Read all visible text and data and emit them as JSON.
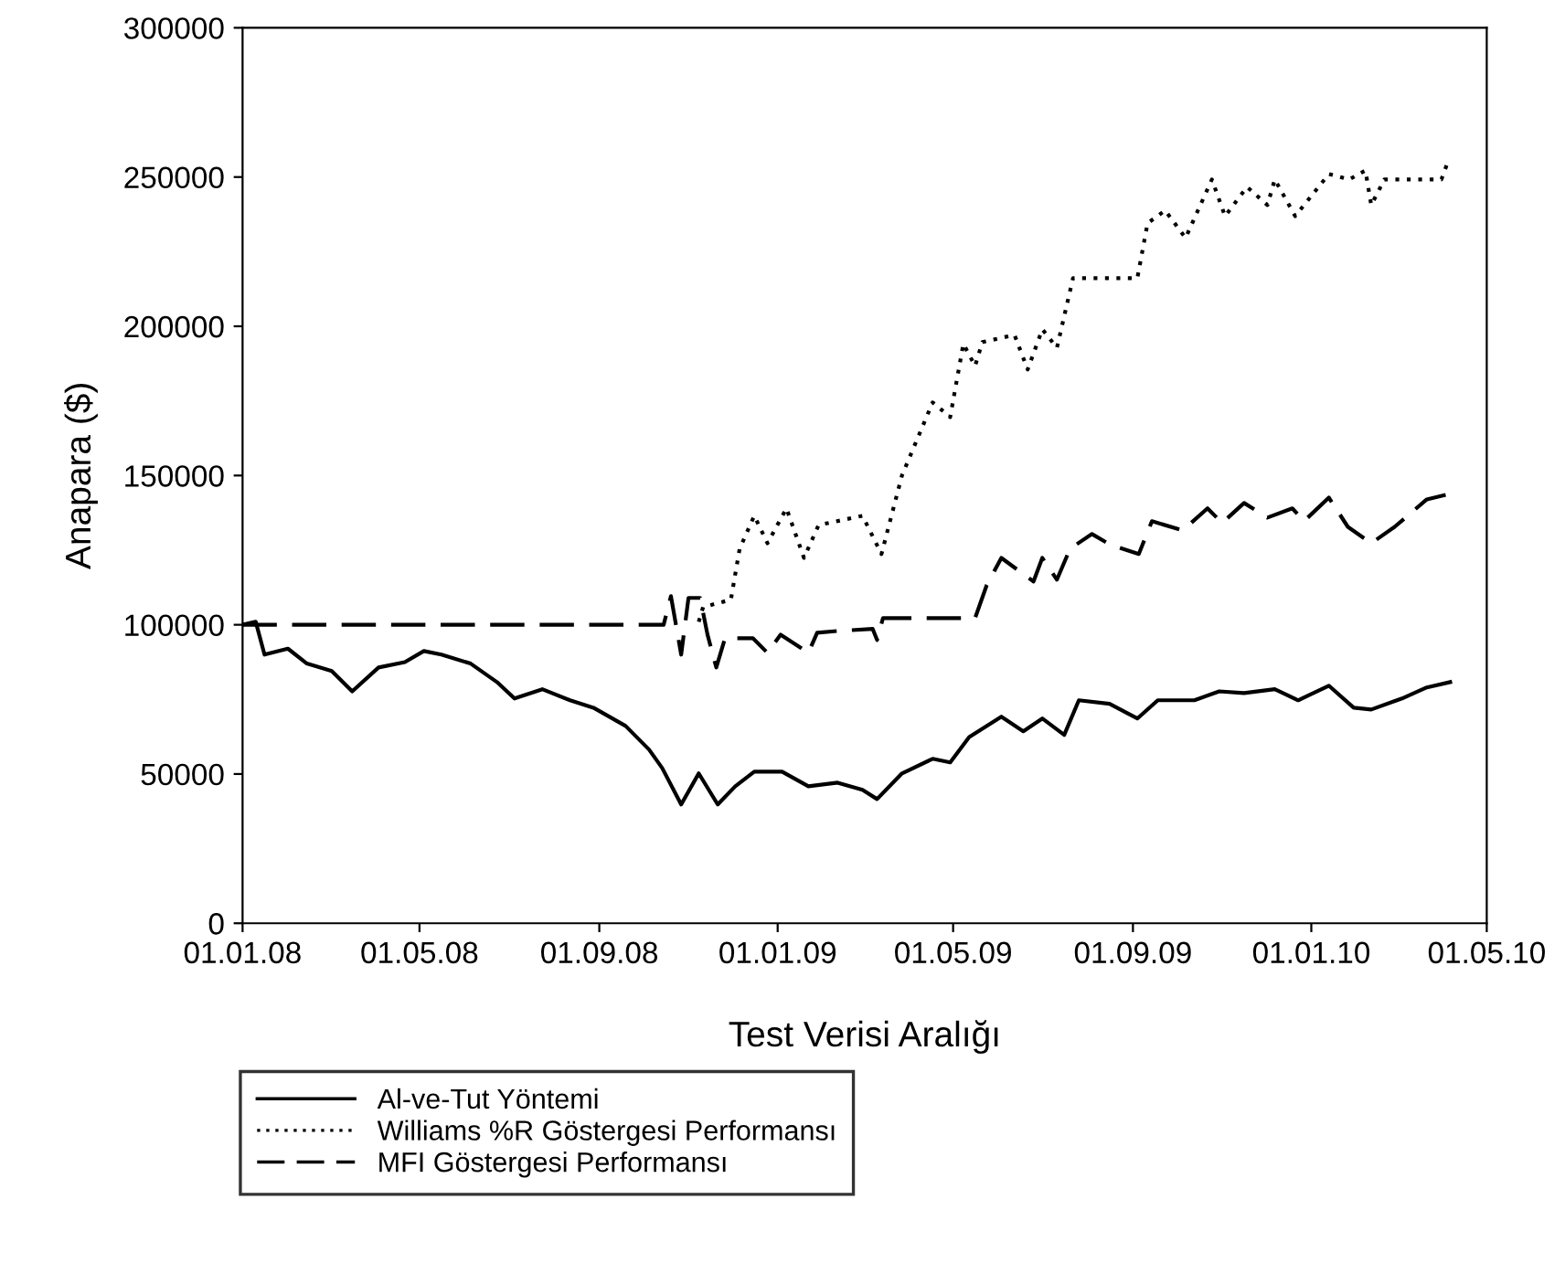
{
  "chart_data": {
    "type": "line",
    "xlabel": "Test Verisi Aralığı",
    "ylabel": "Anapara ($)",
    "xlim": [
      "2008-01-01",
      "2010-05-01"
    ],
    "xticks": [
      {
        "value": "2008-01-01",
        "label": "01.01.08"
      },
      {
        "value": "2008-05-01",
        "label": "01.05.08"
      },
      {
        "value": "2008-09-01",
        "label": "01.09.08"
      },
      {
        "value": "2009-01-01",
        "label": "01.01.09"
      },
      {
        "value": "2009-05-01",
        "label": "01.05.09"
      },
      {
        "value": "2009-09-01",
        "label": "01.09.09"
      },
      {
        "value": "2010-01-01",
        "label": "01.01.10"
      },
      {
        "value": "2010-05-01",
        "label": "01.05.10"
      }
    ],
    "ylim": [
      0,
      300000
    ],
    "yticks": [
      0,
      50000,
      100000,
      150000,
      200000,
      250000,
      300000
    ],
    "grid": false,
    "legend": "bottom",
    "marker": "none",
    "series": [
      {
        "name": "Al-ve-Tut Yöntemi",
        "color": "#000000",
        "line_style": "solid",
        "x": [
          "2008-01-01",
          "2008-01-10",
          "2008-01-16",
          "2008-02-01",
          "2008-02-14",
          "2008-03-02",
          "2008-03-16",
          "2008-04-03",
          "2008-04-21",
          "2008-05-04",
          "2008-05-16",
          "2008-06-05",
          "2008-06-23",
          "2008-07-05",
          "2008-07-24",
          "2008-08-12",
          "2008-08-28",
          "2008-09-19",
          "2008-10-05",
          "2008-10-14",
          "2008-10-27",
          "2008-11-08",
          "2008-11-21",
          "2008-12-03",
          "2008-12-16",
          "2009-01-04",
          "2009-01-22",
          "2009-02-11",
          "2009-02-28",
          "2009-03-10",
          "2009-03-27",
          "2009-04-17",
          "2009-04-29",
          "2009-05-12",
          "2009-06-03",
          "2009-06-18",
          "2009-07-01",
          "2009-07-16",
          "2009-07-26",
          "2009-08-16",
          "2009-09-04",
          "2009-09-18",
          "2009-10-13",
          "2009-10-30",
          "2009-11-16",
          "2009-12-07",
          "2009-12-23",
          "2010-01-13",
          "2010-01-30",
          "2010-02-11",
          "2010-03-04",
          "2010-03-21",
          "2010-04-06"
        ],
        "values": [
          100000,
          101000,
          90000,
          92000,
          87000,
          84500,
          77700,
          85700,
          87500,
          91200,
          90000,
          87000,
          80800,
          75300,
          78400,
          74700,
          72200,
          66100,
          58200,
          52000,
          39800,
          50200,
          39800,
          45900,
          50800,
          50800,
          45900,
          47100,
          44700,
          41600,
          50200,
          55100,
          53900,
          62400,
          69200,
          64300,
          68600,
          63100,
          74700,
          73500,
          68600,
          74700,
          74700,
          77700,
          77100,
          78400,
          74700,
          79600,
          72200,
          71600,
          75300,
          79000,
          80800
        ]
      },
      {
        "name": "Williams %R Göstergesi Performansı",
        "color": "#000000",
        "line_style": "dotted",
        "x": [
          "2008-11-08",
          "2008-11-11",
          "2008-11-20",
          "2008-11-30",
          "2008-12-06",
          "2008-12-16",
          "2008-12-25",
          "2009-01-07",
          "2009-01-19",
          "2009-01-29",
          "2009-02-28",
          "2009-03-13",
          "2009-03-27",
          "2009-04-17",
          "2009-04-29",
          "2009-05-08",
          "2009-05-16",
          "2009-05-21",
          "2009-06-12",
          "2009-06-21",
          "2009-07-01",
          "2009-07-11",
          "2009-07-22",
          "2009-09-04",
          "2009-09-11",
          "2009-09-23",
          "2009-10-07",
          "2009-10-25",
          "2009-11-03",
          "2009-11-18",
          "2009-12-02",
          "2009-12-07",
          "2009-12-21",
          "2010-01-13",
          "2010-01-27",
          "2010-02-07",
          "2010-02-11",
          "2010-02-20",
          "2010-03-31",
          "2010-04-05"
        ],
        "values": [
          101000,
          105900,
          107100,
          108400,
          125500,
          136500,
          127300,
          139000,
          122400,
          133400,
          136500,
          123700,
          150000,
          174500,
          169600,
          194100,
          186700,
          194700,
          197100,
          185500,
          199000,
          192800,
          216100,
          216100,
          234500,
          238800,
          229600,
          249200,
          236900,
          246700,
          240600,
          249200,
          236900,
          251000,
          249200,
          252200,
          240600,
          249200,
          249200,
          255900
        ]
      },
      {
        "name": "MFI Göstergesi Performansı",
        "color": "#000000",
        "line_style": "dashed",
        "x": [
          "2008-01-01",
          "2008-10-15",
          "2008-10-20",
          "2008-10-27",
          "2008-11-01",
          "2008-11-09",
          "2008-11-14",
          "2008-11-20",
          "2008-11-26",
          "2008-12-15",
          "2008-12-25",
          "2009-01-03",
          "2009-01-22",
          "2009-01-28",
          "2009-02-13",
          "2009-03-07",
          "2009-03-10",
          "2009-03-14",
          "2009-05-16",
          "2009-05-24",
          "2009-06-03",
          "2009-06-25",
          "2009-07-01",
          "2009-07-11",
          "2009-07-20",
          "2009-08-04",
          "2009-08-17",
          "2009-09-05",
          "2009-09-14",
          "2009-10-05",
          "2009-10-22",
          "2009-11-01",
          "2009-11-16",
          "2009-12-02",
          "2009-12-19",
          "2009-12-27",
          "2010-01-13",
          "2010-01-26",
          "2010-02-11",
          "2010-02-27",
          "2010-03-21",
          "2010-04-06"
        ],
        "values": [
          100000,
          100000,
          109600,
          90000,
          109000,
          109000,
          96700,
          85700,
          95500,
          95500,
          90600,
          96700,
          90600,
          97300,
          98000,
          98600,
          94900,
          102200,
          102200,
          113300,
          122400,
          114500,
          122400,
          115100,
          125500,
          130400,
          126700,
          123700,
          134700,
          131600,
          139000,
          134100,
          140800,
          135900,
          139000,
          134700,
          142600,
          132800,
          127300,
          132800,
          142000,
          143900
        ]
      }
    ]
  }
}
